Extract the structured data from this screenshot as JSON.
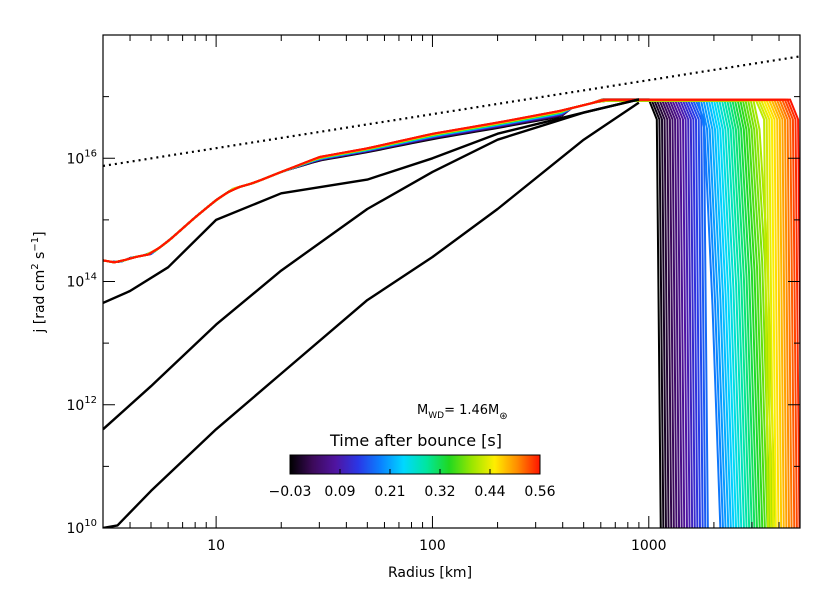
{
  "chart_data": {
    "type": "line",
    "xscale": "log",
    "yscale": "log",
    "xlim": [
      3,
      5000
    ],
    "ylim": [
      10000000000.0,
      1e+18
    ],
    "xlabel": "Radius [km]",
    "ylabel_main": "j [rad cm",
    "ylabel_exp1": "2",
    "ylabel_mid": " s",
    "ylabel_exp2": "−1",
    "ylabel_end": "]",
    "x_ticks": [
      {
        "value": 10,
        "label": "10"
      },
      {
        "value": 100,
        "label": "100"
      },
      {
        "value": 1000,
        "label": "1000"
      }
    ],
    "y_ticks": [
      {
        "value": 10000000000.0,
        "base": "10",
        "exp": "10"
      },
      {
        "value": 1000000000000.0,
        "base": "10",
        "exp": "12"
      },
      {
        "value": 100000000000000.0,
        "base": "10",
        "exp": "14"
      },
      {
        "value": 1e+16,
        "base": "10",
        "exp": "16"
      }
    ],
    "reference_line": {
      "style": "dotted",
      "x": [
        3,
        5000
      ],
      "y": [
        7500000000000000.0,
        4.5e+17
      ]
    },
    "black_curves": [
      {
        "name": "initial-profile-1",
        "x": [
          3,
          3.5,
          5,
          10,
          20,
          50,
          100,
          200,
          500,
          900
        ],
        "y": [
          10000000000.0,
          11000000000.0,
          40000000000.0,
          400000000000.0,
          3200000000000.0,
          50000000000000.0,
          250000000000000.0,
          1500000000000000.0,
          2e+16,
          8e+16
        ]
      },
      {
        "name": "initial-profile-2",
        "x": [
          3,
          5,
          10,
          20,
          50,
          100,
          200,
          500,
          900
        ],
        "y": [
          400000000000.0,
          2000000000000.0,
          20000000000000.0,
          150000000000000.0,
          1500000000000000.0,
          6000000000000000.0,
          2e+16,
          5.5e+16,
          9e+16
        ]
      },
      {
        "name": "initial-profile-3",
        "x": [
          3,
          4,
          6,
          10,
          20,
          50,
          100,
          200,
          500,
          900
        ],
        "y": [
          45000000000000.0,
          70000000000000.0,
          170000000000000.0,
          1000000000000000.0,
          2700000000000000.0,
          4500000000000000.0,
          1e+16,
          2.5e+16,
          5.5e+16,
          9e+16
        ]
      }
    ],
    "time_curves": {
      "count": 55,
      "t_min": -0.03,
      "t_max": 0.56,
      "inner_x": [
        3,
        3.5,
        4,
        5,
        6,
        8,
        10,
        12,
        15,
        20,
        30,
        50,
        100,
        200,
        400
      ],
      "inner_y": [
        220000000000000.0,
        200000000000000.0,
        240000000000000.0,
        280000000000000.0,
        450000000000000.0,
        1100000000000000.0,
        2100000000000000.0,
        3200000000000000.0,
        4000000000000000.0,
        6000000000000000.0,
        1.05e+16,
        1.45e+16,
        2.5e+16,
        3.8e+16,
        6e+16
      ],
      "envelope_x": [
        4000,
        5000
      ],
      "plateau_j": 9e+16,
      "front_radius_first": 1000,
      "front_radius_last": 4500,
      "dip_x": 2400,
      "dip_y": 100000000000000.0
    },
    "annotation": {
      "prefix": "M",
      "sub1": "WD",
      "mid": "= 1.46M",
      "sub2": "⊛"
    },
    "colorbar": {
      "title": "Time after bounce [s]",
      "min": -0.03,
      "max": 0.56,
      "stops": [
        "#000000",
        "#3c0a5a",
        "#5014a0",
        "#2a37e6",
        "#0a82ff",
        "#00d8ff",
        "#00e6a0",
        "#20d820",
        "#9ae600",
        "#ffee00",
        "#ff8c00",
        "#ff1400"
      ],
      "tick_labels": [
        "−0.03",
        "0.09",
        "0.21",
        "0.32",
        "0.44",
        "0.56"
      ]
    }
  }
}
